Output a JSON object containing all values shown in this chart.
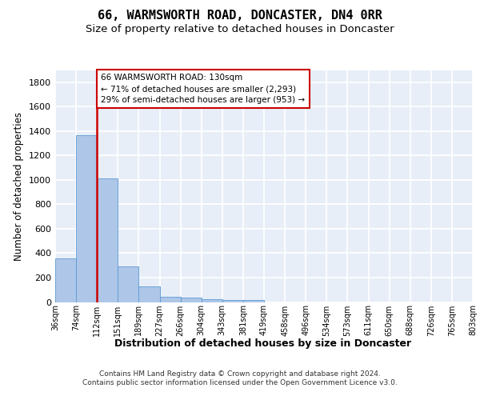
{
  "title": "66, WARMSWORTH ROAD, DONCASTER, DN4 0RR",
  "subtitle": "Size of property relative to detached houses in Doncaster",
  "xlabel": "Distribution of detached houses by size in Doncaster",
  "ylabel": "Number of detached properties",
  "bar_values": [
    355,
    1365,
    1010,
    290,
    125,
    42,
    35,
    25,
    18,
    18,
    0,
    0,
    0,
    0,
    0,
    0,
    0,
    0,
    0,
    0
  ],
  "x_labels": [
    "36sqm",
    "74sqm",
    "112sqm",
    "151sqm",
    "189sqm",
    "227sqm",
    "266sqm",
    "304sqm",
    "343sqm",
    "381sqm",
    "419sqm",
    "458sqm",
    "496sqm",
    "534sqm",
    "573sqm",
    "611sqm",
    "650sqm",
    "688sqm",
    "726sqm",
    "765sqm",
    "803sqm"
  ],
  "bar_color": "#aec6e8",
  "bar_edge_color": "#5b9bd5",
  "vline_color": "#cc0000",
  "annotation_text": "66 WARMSWORTH ROAD: 130sqm\n← 71% of detached houses are smaller (2,293)\n29% of semi-detached houses are larger (953) →",
  "annotation_box_color": "#ffffff",
  "annotation_box_edge": "#cc0000",
  "ylim": [
    0,
    1900
  ],
  "yticks": [
    0,
    200,
    400,
    600,
    800,
    1000,
    1200,
    1400,
    1600,
    1800
  ],
  "footer_line1": "Contains HM Land Registry data © Crown copyright and database right 2024.",
  "footer_line2": "Contains public sector information licensed under the Open Government Licence v3.0.",
  "background_color": "#e8eef8",
  "grid_color": "#ffffff",
  "title_fontsize": 11,
  "subtitle_fontsize": 9.5,
  "ylabel_fontsize": 8.5,
  "xlabel_fontsize": 9,
  "footer_fontsize": 6.5,
  "tick_fontsize": 7,
  "annot_fontsize": 7.5
}
